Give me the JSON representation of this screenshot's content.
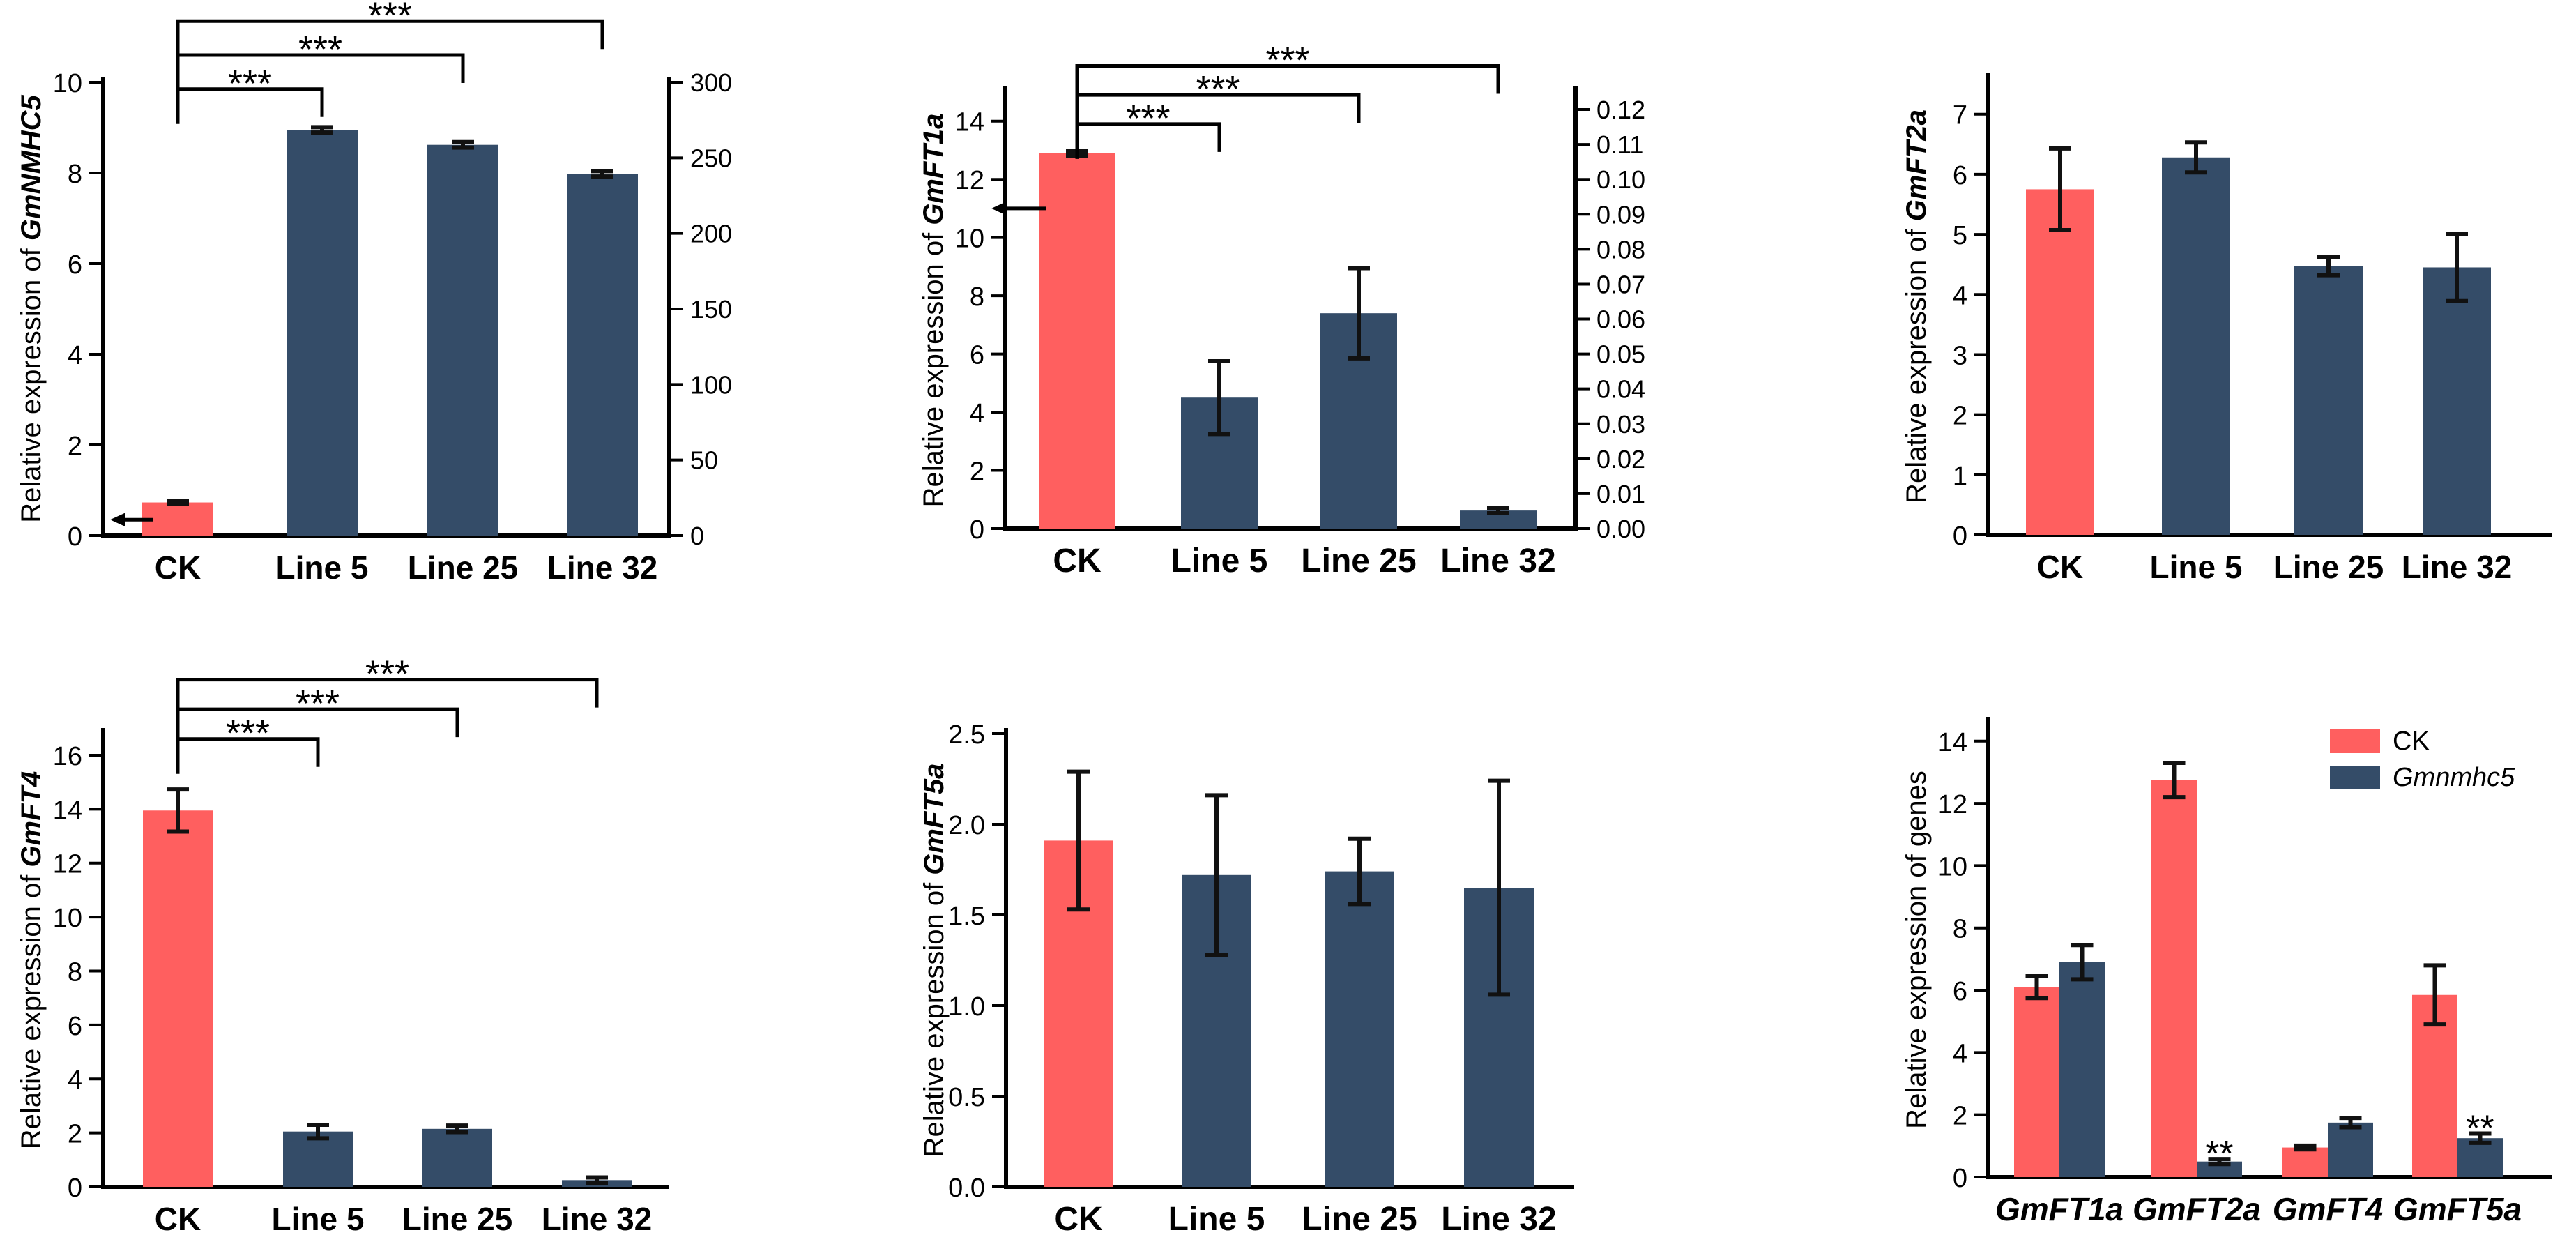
{
  "colors": {
    "ck": "#ff5f5f",
    "line": "#344c68",
    "axis": "#000000",
    "error": "#111111"
  },
  "chart_data": [
    {
      "id": "nmhc5",
      "type": "bar",
      "ylabel": "Relative expression of ",
      "ylabel_gene": "GmNMHC5",
      "categories": [
        "CK",
        "Line 5",
        "Line 25",
        "Line 32"
      ],
      "values": [
        0.73,
        8.95,
        8.62,
        7.98
      ],
      "errors": [
        0.03,
        0.06,
        0.06,
        0.06
      ],
      "ylim": [
        0,
        10
      ],
      "yticks": [
        "0",
        "2",
        "4",
        "6",
        "8",
        "10"
      ],
      "ytick_values": [
        0,
        2,
        4,
        6,
        8,
        10
      ],
      "y2lim": [
        0,
        300
      ],
      "y2ticks": [
        "0",
        "50",
        "100",
        "150",
        "200",
        "250",
        "300"
      ],
      "y2tick_values": [
        0,
        50,
        100,
        150,
        200,
        250,
        300
      ],
      "arrow": {
        "y": 0.35,
        "side": "left"
      },
      "significance": [
        {
          "label": "***",
          "from": 0,
          "to": 1,
          "level": 9.85
        },
        {
          "label": "***",
          "from": 0,
          "to": 2,
          "level": 10.6
        },
        {
          "label": "***",
          "from": 0,
          "to": 3,
          "level": 11.35
        }
      ]
    },
    {
      "id": "ft1a",
      "type": "bar",
      "ylabel": "Relative expression of ",
      "ylabel_gene": "GmFT1a",
      "categories": [
        "CK",
        "Line 5",
        "Line 25",
        "Line 32"
      ],
      "values": [
        12.9,
        4.5,
        7.4,
        0.62
      ],
      "errors": [
        0.08,
        1.25,
        1.55,
        0.09
      ],
      "ylim": [
        0,
        15
      ],
      "yticks": [
        "0",
        "2",
        "4",
        "6",
        "8",
        "10",
        "12",
        "14"
      ],
      "ytick_values": [
        0,
        2,
        4,
        6,
        8,
        10,
        12,
        14
      ],
      "y2lim": [
        0,
        0.125
      ],
      "y2ticks": [
        "0.00",
        "0.01",
        "0.02",
        "0.03",
        "0.04",
        "0.05",
        "0.06",
        "0.07",
        "0.08",
        "0.09",
        "0.10",
        "0.11",
        "0.12"
      ],
      "y2tick_values": [
        0,
        0.01,
        0.02,
        0.03,
        0.04,
        0.05,
        0.06,
        0.07,
        0.08,
        0.09,
        0.1,
        0.11,
        0.12
      ],
      "arrow": {
        "y": 11.0,
        "side": "right-of-ck"
      },
      "significance": [
        {
          "label": "***",
          "from": 0,
          "to": 1,
          "level": 13.9
        },
        {
          "label": "***",
          "from": 0,
          "to": 2,
          "level": 14.9
        },
        {
          "label": "***",
          "from": 0,
          "to": 3,
          "level": 15.9
        }
      ]
    },
    {
      "id": "ft2a",
      "type": "bar",
      "ylabel": "Relative expression of ",
      "ylabel_gene": "GmFT2a",
      "categories": [
        "CK",
        "Line 5",
        "Line 25",
        "Line 32"
      ],
      "values": [
        5.75,
        6.28,
        4.47,
        4.45
      ],
      "errors": [
        0.68,
        0.25,
        0.15,
        0.56
      ],
      "ylim": [
        0,
        7.6
      ],
      "yticks": [
        "0",
        "1",
        "2",
        "3",
        "4",
        "5",
        "6",
        "7"
      ],
      "ytick_values": [
        0,
        1,
        2,
        3,
        4,
        5,
        6,
        7
      ],
      "significance": []
    },
    {
      "id": "ft4",
      "type": "bar",
      "ylabel": "Relative expression of ",
      "ylabel_gene": "GmFT4",
      "categories": [
        "CK",
        "Line 5",
        "Line 25",
        "Line 32"
      ],
      "values": [
        13.95,
        2.05,
        2.15,
        0.25
      ],
      "errors": [
        0.78,
        0.25,
        0.12,
        0.1
      ],
      "ylim": [
        0,
        16.8
      ],
      "yticks": [
        "0",
        "2",
        "4",
        "6",
        "8",
        "10",
        "12",
        "14",
        "16"
      ],
      "ytick_values": [
        0,
        2,
        4,
        6,
        8,
        10,
        12,
        14,
        16
      ],
      "significance": [
        {
          "label": "***",
          "from": 0,
          "to": 1,
          "level": 16.6
        },
        {
          "label": "***",
          "from": 0,
          "to": 2,
          "level": 17.7
        },
        {
          "label": "***",
          "from": 0,
          "to": 3,
          "level": 18.8
        }
      ]
    },
    {
      "id": "ft5a",
      "type": "bar",
      "ylabel": "Relative expression of ",
      "ylabel_gene": "GmFT5a",
      "categories": [
        "CK",
        "Line 5",
        "Line 25",
        "Line 32"
      ],
      "values": [
        1.91,
        1.72,
        1.74,
        1.65
      ],
      "errors": [
        0.38,
        0.44,
        0.18,
        0.59
      ],
      "ylim": [
        0,
        2.5
      ],
      "yticks": [
        "0.0",
        "0.5",
        "1.0",
        "1.5",
        "2.0",
        "2.5"
      ],
      "ytick_values": [
        0,
        0.5,
        1.0,
        1.5,
        2.0,
        2.5
      ],
      "significance": []
    },
    {
      "id": "genes",
      "type": "bar",
      "ylabel": "Relative expression of genes",
      "ylabel_gene": "",
      "categories": [
        "GmFT1a",
        "GmFT2a",
        "GmFT4",
        "GmFT5a"
      ],
      "series": [
        {
          "name": "CK",
          "values": [
            6.1,
            12.75,
            0.95,
            5.85
          ],
          "errors": [
            0.35,
            0.55,
            0.06,
            0.95
          ]
        },
        {
          "name": "Gmnmhc5",
          "values": [
            6.9,
            0.5,
            1.75,
            1.25
          ],
          "errors": [
            0.55,
            0.08,
            0.15,
            0.15
          ]
        }
      ],
      "ylim": [
        0,
        14.6
      ],
      "yticks": [
        "0",
        "2",
        "4",
        "6",
        "8",
        "10",
        "12",
        "14"
      ],
      "ytick_values": [
        0,
        2,
        4,
        6,
        8,
        10,
        12,
        14
      ],
      "annotations": [
        {
          "label": "**",
          "category": 1,
          "series": 1
        },
        {
          "label": "**",
          "category": 3,
          "series": 1
        }
      ],
      "legend": {
        "placement": "top-right",
        "entries": [
          "CK",
          "Gmnmhc5"
        ]
      }
    }
  ]
}
